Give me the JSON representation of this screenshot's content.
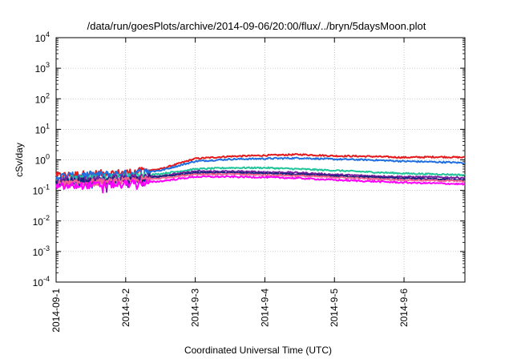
{
  "chart_data": {
    "type": "line",
    "title": "/data/run/goesPlots/archive/2014-09-06/20:00/flux/../bryn/5daysMoon.plot",
    "xlabel": "Coordinated Universal Time (UTC)",
    "ylabel": "cSv/day",
    "yscale": "log",
    "ylim": [
      0.0001,
      10000
    ],
    "xlim": [
      "2014-09-01",
      "2014-09-06 21:00"
    ],
    "grid": true,
    "legend": "none",
    "x_ticks": [
      "2014-09-1",
      "2014-9-2",
      "2014-9-3",
      "2014-9-4",
      "2014-9-5",
      "2014-9-6"
    ],
    "y_ticks": [
      {
        "base": "10",
        "exp": "-4"
      },
      {
        "base": "10",
        "exp": "-3"
      },
      {
        "base": "10",
        "exp": "-2"
      },
      {
        "base": "10",
        "exp": "-1"
      },
      {
        "base": "10",
        "exp": "0"
      },
      {
        "base": "10",
        "exp": "1"
      },
      {
        "base": "10",
        "exp": "2"
      },
      {
        "base": "10",
        "exp": "3"
      },
      {
        "base": "10",
        "exp": "4"
      }
    ],
    "x": [
      "2014-09-01 00:00",
      "2014-09-01 12:00",
      "2014-09-02 00:00",
      "2014-09-02 12:00",
      "2014-09-03 00:00",
      "2014-09-03 12:00",
      "2014-09-04 00:00",
      "2014-09-04 12:00",
      "2014-09-05 00:00",
      "2014-09-05 12:00",
      "2014-09-06 00:00",
      "2014-09-06 12:00",
      "2014-09-06 21:00"
    ],
    "series": [
      {
        "color": "#e41a1c",
        "values": [
          0.3,
          0.35,
          0.38,
          0.5,
          1.1,
          1.3,
          1.4,
          1.5,
          1.35,
          1.3,
          1.2,
          1.25,
          1.2
        ]
      },
      {
        "color": "#1f6fe0",
        "values": [
          0.28,
          0.32,
          0.35,
          0.45,
          0.9,
          1.05,
          1.1,
          1.15,
          1.05,
          1.0,
          0.9,
          0.85,
          0.8
        ]
      },
      {
        "color": "#22c49a",
        "values": [
          0.22,
          0.25,
          0.27,
          0.35,
          0.5,
          0.55,
          0.55,
          0.5,
          0.45,
          0.4,
          0.36,
          0.34,
          0.32
        ]
      },
      {
        "color": "#7b1fa2",
        "values": [
          0.2,
          0.22,
          0.25,
          0.3,
          0.42,
          0.42,
          0.4,
          0.38,
          0.33,
          0.3,
          0.28,
          0.27,
          0.26
        ]
      },
      {
        "color": "#1a237e",
        "values": [
          0.18,
          0.2,
          0.22,
          0.28,
          0.38,
          0.38,
          0.36,
          0.33,
          0.3,
          0.27,
          0.25,
          0.23,
          0.22
        ]
      },
      {
        "color": "#f06292",
        "values": [
          0.16,
          0.18,
          0.2,
          0.25,
          0.34,
          0.34,
          0.32,
          0.3,
          0.27,
          0.24,
          0.22,
          0.21,
          0.2
        ]
      },
      {
        "color": "#ff00ff",
        "values": [
          0.13,
          0.15,
          0.16,
          0.2,
          0.28,
          0.28,
          0.27,
          0.25,
          0.22,
          0.2,
          0.18,
          0.17,
          0.16
        ]
      }
    ]
  }
}
